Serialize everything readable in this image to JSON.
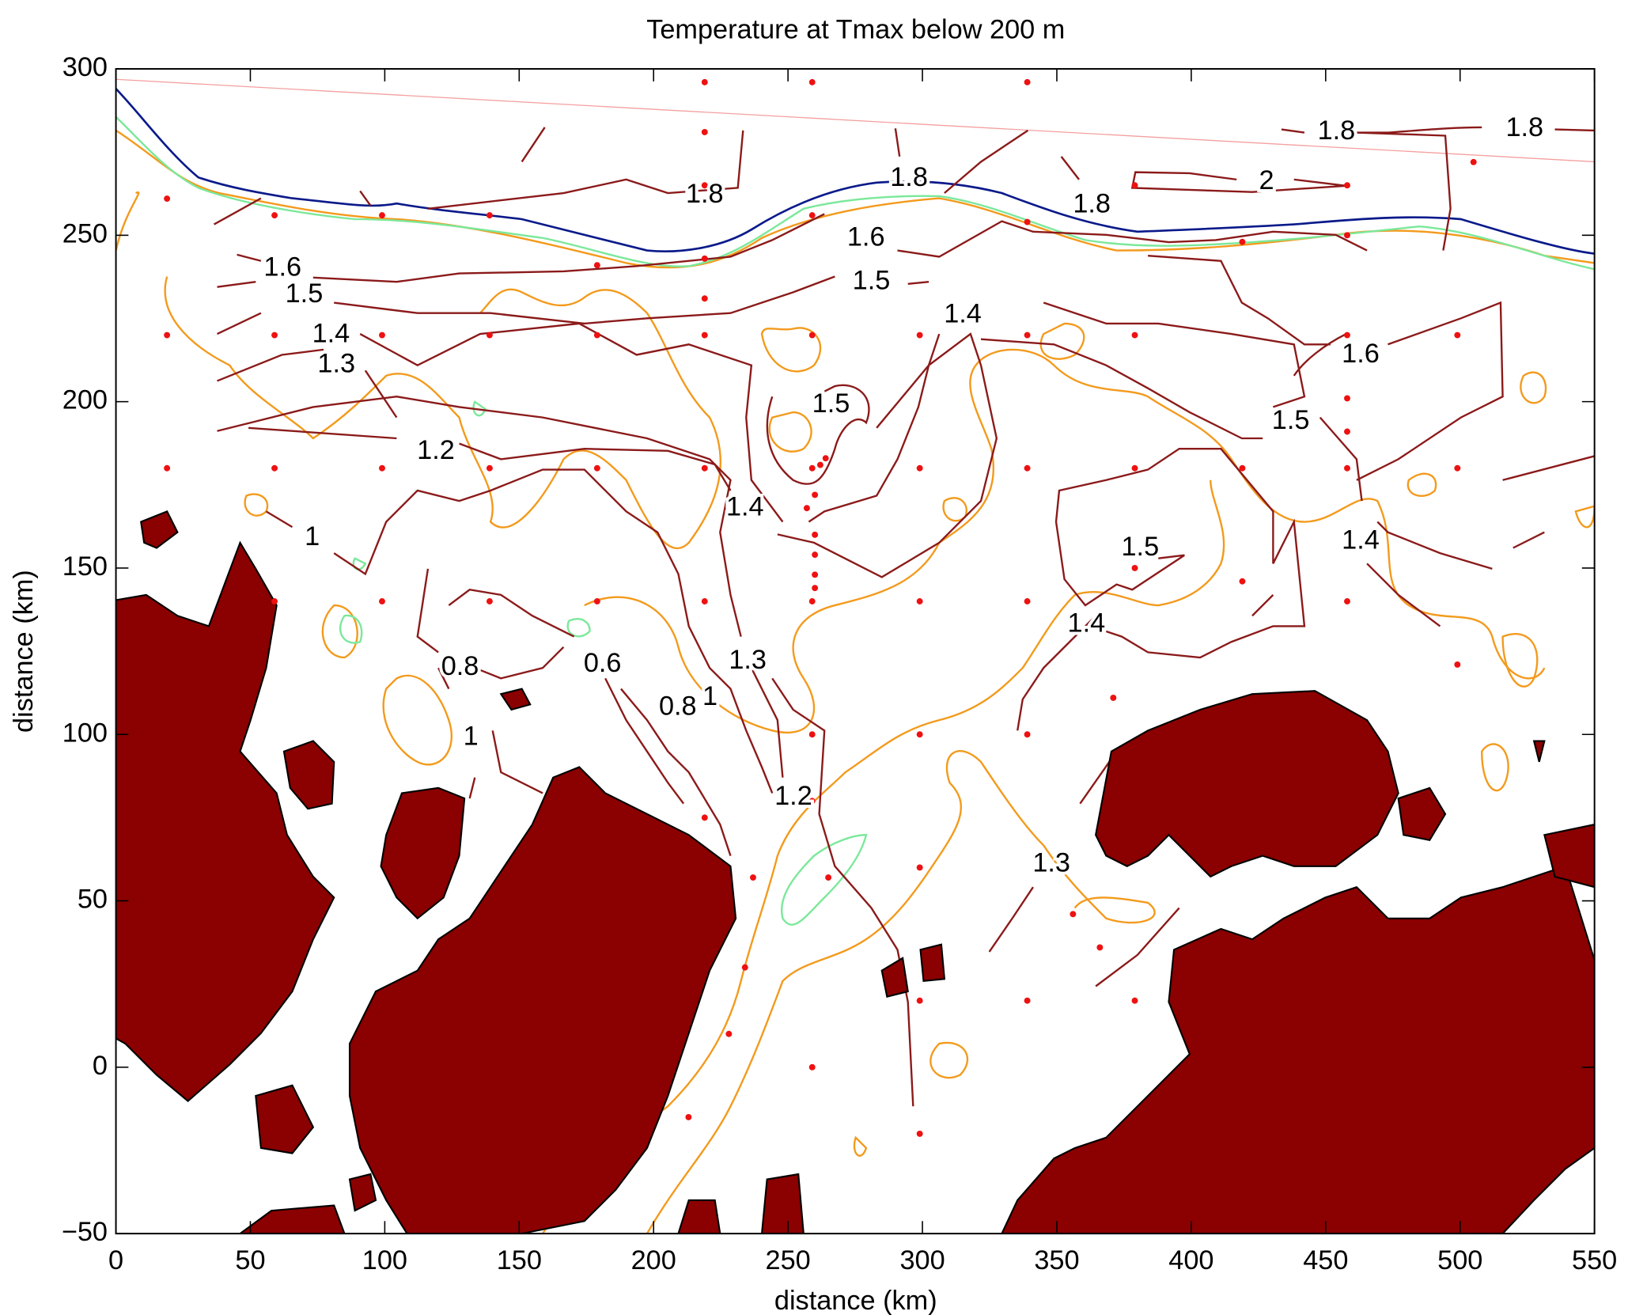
{
  "chart_data": {
    "type": "scatter",
    "title": "Temperature at Tmax below 200 m",
    "x_label": "distance (km)",
    "y_label": "distance (km)",
    "xlim": [
      0,
      550
    ],
    "ylim": [
      -50,
      300
    ],
    "xticks": [
      0,
      50,
      100,
      150,
      200,
      250,
      300,
      350,
      400,
      450,
      500,
      550
    ],
    "yticks": [
      {
        "value": -50,
        "label": "−50"
      },
      0,
      50,
      100,
      150,
      200,
      250,
      300
    ],
    "color": "#ee1111",
    "x": [
      19,
      19,
      19,
      59,
      59,
      59,
      59,
      99,
      99,
      99,
      99,
      139,
      139,
      139,
      139,
      179,
      179,
      179,
      179,
      219,
      219,
      219,
      219,
      219,
      219,
      219,
      219,
      219,
      259,
      259,
      259,
      259,
      259,
      259,
      259,
      259,
      299,
      299,
      299,
      299,
      299,
      299,
      299,
      339,
      339,
      339,
      339,
      339,
      339,
      339,
      379,
      379,
      379,
      379,
      379,
      419,
      419,
      419,
      458,
      458,
      458,
      458,
      458,
      458,
      458,
      499,
      499,
      499,
      505,
      213,
      228,
      234,
      237,
      265,
      356,
      366,
      371,
      262,
      264,
      260,
      257,
      260,
      260,
      260,
      260
    ],
    "y": [
      261,
      220,
      180,
      256,
      220,
      180,
      140,
      256,
      220,
      180,
      140,
      256,
      220,
      180,
      140,
      241,
      220,
      180,
      140,
      296,
      281,
      265,
      243,
      231,
      220,
      180,
      140,
      75,
      296,
      256,
      220,
      180,
      140,
      100,
      80,
      0,
      220,
      180,
      140,
      100,
      60,
      20,
      -20,
      296,
      254,
      220,
      180,
      140,
      100,
      20,
      265,
      220,
      180,
      150,
      20,
      248,
      180,
      146,
      265,
      250,
      220,
      201,
      191,
      180,
      140,
      220,
      180,
      121,
      272,
      -15,
      10,
      30,
      57,
      57,
      46,
      36,
      111,
      181,
      183,
      172,
      168,
      160,
      154,
      148,
      144
    ],
    "contour_labels": [
      {
        "level": 1.8,
        "x": 219,
        "y": 262
      },
      {
        "level": 1.8,
        "x": 454,
        "y": 281
      },
      {
        "level": 1.8,
        "x": 524,
        "y": 282
      },
      {
        "level": 1.8,
        "x": 295,
        "y": 267
      },
      {
        "level": 1.8,
        "x": 363,
        "y": 259
      },
      {
        "level": 2,
        "x": 428,
        "y": 266
      },
      {
        "level": 1.6,
        "x": 62,
        "y": 240
      },
      {
        "level": 1.6,
        "x": 279,
        "y": 249
      },
      {
        "level": 1.6,
        "x": 463,
        "y": 214
      },
      {
        "level": 1.5,
        "x": 70,
        "y": 232
      },
      {
        "level": 1.5,
        "x": 281,
        "y": 236
      },
      {
        "level": 1.5,
        "x": 266,
        "y": 199
      },
      {
        "level": 1.5,
        "x": 437,
        "y": 194
      },
      {
        "level": 1.5,
        "x": 381,
        "y": 156
      },
      {
        "level": 1.4,
        "x": 80,
        "y": 220
      },
      {
        "level": 1.4,
        "x": 315,
        "y": 226
      },
      {
        "level": 1.4,
        "x": 234,
        "y": 168
      },
      {
        "level": 1.4,
        "x": 463,
        "y": 158
      },
      {
        "level": 1.4,
        "x": 361,
        "y": 133
      },
      {
        "level": 1.3,
        "x": 82,
        "y": 211
      },
      {
        "level": 1.3,
        "x": 235,
        "y": 122
      },
      {
        "level": 1.3,
        "x": 348,
        "y": 61
      },
      {
        "level": 1.2,
        "x": 119,
        "y": 185
      },
      {
        "level": 1.2,
        "x": 252,
        "y": 81
      },
      {
        "level": 1,
        "x": 73,
        "y": 159
      },
      {
        "level": 1,
        "x": 221,
        "y": 111
      },
      {
        "level": 1,
        "x": 132,
        "y": 99
      },
      {
        "level": 0.8,
        "x": 128,
        "y": 120
      },
      {
        "level": 0.8,
        "x": 209,
        "y": 108
      },
      {
        "level": 0.6,
        "x": 181,
        "y": 121
      }
    ]
  }
}
